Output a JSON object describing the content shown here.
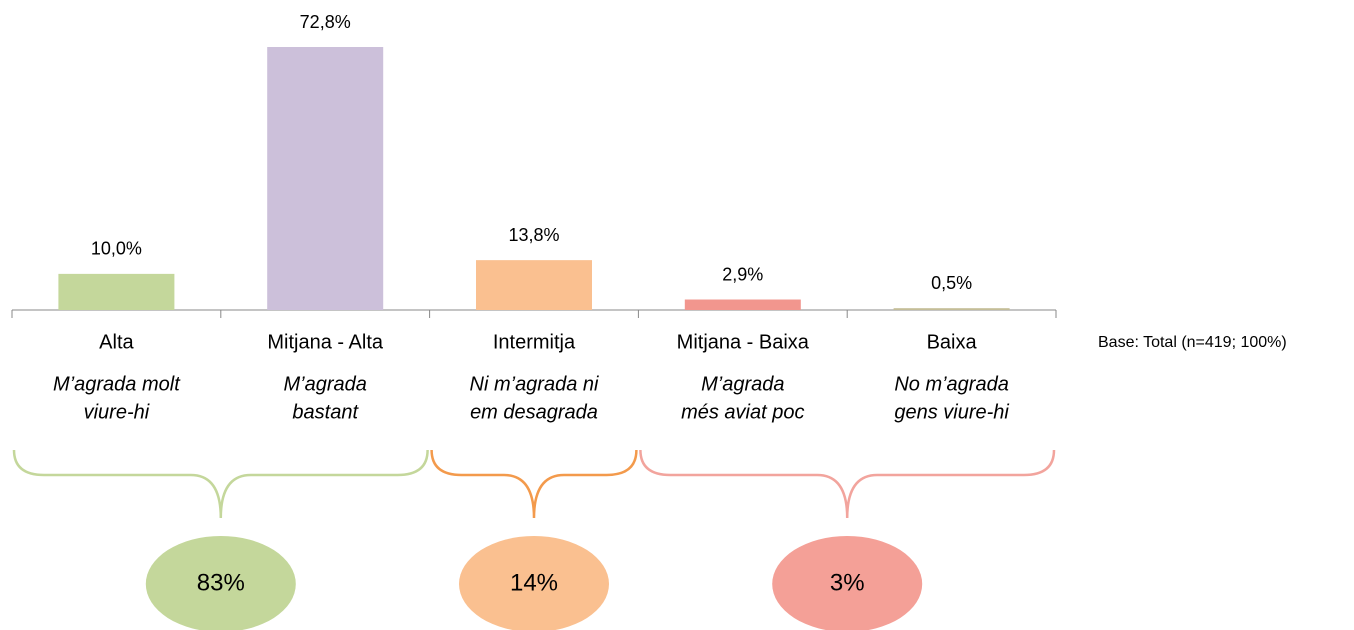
{
  "chart_data": {
    "type": "bar",
    "categories": [
      "Alta",
      "Mitjana - Alta",
      "Intermitja",
      "Mitjana - Baixa",
      "Baixa"
    ],
    "sublabels": [
      [
        "M’agrada molt",
        "viure-hi"
      ],
      [
        "M’agrada",
        "bastant"
      ],
      [
        "Ni m’agrada ni",
        "em desagrada"
      ],
      [
        "M’agrada",
        "més aviat poc"
      ],
      [
        "No m’agrada",
        "gens viure-hi"
      ]
    ],
    "values": [
      10.0,
      72.8,
      13.8,
      2.9,
      0.5
    ],
    "value_labels": [
      "10,0%",
      "72,8%",
      "13,8%",
      "2,9%",
      "0,5%"
    ],
    "colors": [
      "#c4d79b",
      "#ccc0da",
      "#fac090",
      "#f2968e",
      "#c4bd97"
    ],
    "ylim": [
      0,
      80
    ],
    "groups": {
      "values": [
        83,
        14,
        3
      ],
      "value_labels": [
        "83%",
        "14%",
        "3%"
      ],
      "colors": [
        "#c4d79b",
        "#fac090",
        "#f4a097"
      ],
      "brace_colors": [
        "#c4d79b",
        "#f39a4c",
        "#f2a49d"
      ]
    },
    "note": "Base: Total (n=419; 100%)"
  }
}
